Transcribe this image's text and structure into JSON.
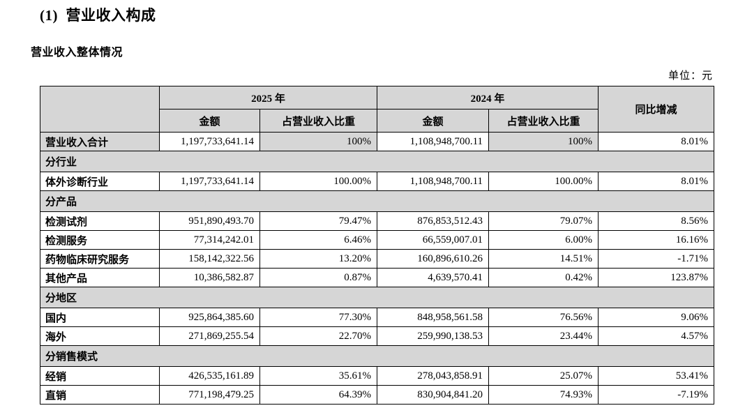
{
  "page": {
    "title": "(1)  营业收入构成",
    "subtitle": "营业收入整体情况",
    "unit_label": "单位：元"
  },
  "colors": {
    "shading": "#d6d6d6",
    "border": "#000000",
    "text": "#000000",
    "background": "#ffffff"
  },
  "table": {
    "header": {
      "year_2025": "2025 年",
      "year_2024": "2024 年",
      "yoy": "同比增减",
      "amount": "金额",
      "pct_of_revenue": "占营业收入比重"
    },
    "rows": [
      {
        "type": "data",
        "variant": "total",
        "label": "营业收入合计",
        "amount_2025": "1,197,733,641.14",
        "pct_2025": "100%",
        "amount_2024": "1,108,948,700.11",
        "pct_2024": "100%",
        "yoy": "8.01%"
      },
      {
        "type": "section",
        "label": "分行业"
      },
      {
        "type": "data",
        "label": "体外诊断行业",
        "amount_2025": "1,197,733,641.14",
        "pct_2025": "100.00%",
        "amount_2024": "1,108,948,700.11",
        "pct_2024": "100.00%",
        "yoy": "8.01%"
      },
      {
        "type": "section",
        "label": "分产品"
      },
      {
        "type": "data",
        "label": "检测试剂",
        "amount_2025": "951,890,493.70",
        "pct_2025": "79.47%",
        "amount_2024": "876,853,512.43",
        "pct_2024": "79.07%",
        "yoy": "8.56%"
      },
      {
        "type": "data",
        "label": "检测服务",
        "amount_2025": "77,314,242.01",
        "pct_2025": "6.46%",
        "amount_2024": "66,559,007.01",
        "pct_2024": "6.00%",
        "yoy": "16.16%"
      },
      {
        "type": "data",
        "label": "药物临床研究服务",
        "amount_2025": "158,142,322.56",
        "pct_2025": "13.20%",
        "amount_2024": "160,896,610.26",
        "pct_2024": "14.51%",
        "yoy": "-1.71%"
      },
      {
        "type": "data",
        "label": "其他产品",
        "amount_2025": "10,386,582.87",
        "pct_2025": "0.87%",
        "amount_2024": "4,639,570.41",
        "pct_2024": "0.42%",
        "yoy": "123.87%"
      },
      {
        "type": "section",
        "label": "分地区"
      },
      {
        "type": "data",
        "label": "国内",
        "amount_2025": "925,864,385.60",
        "pct_2025": "77.30%",
        "amount_2024": "848,958,561.58",
        "pct_2024": "76.56%",
        "yoy": "9.06%"
      },
      {
        "type": "data",
        "label": "海外",
        "amount_2025": "271,869,255.54",
        "pct_2025": "22.70%",
        "amount_2024": "259,990,138.53",
        "pct_2024": "23.44%",
        "yoy": "4.57%"
      },
      {
        "type": "section",
        "label": "分销售模式"
      },
      {
        "type": "data",
        "label": "经销",
        "amount_2025": "426,535,161.89",
        "pct_2025": "35.61%",
        "amount_2024": "278,043,858.91",
        "pct_2024": "25.07%",
        "yoy": "53.41%"
      },
      {
        "type": "data",
        "label": "直销",
        "amount_2025": "771,198,479.25",
        "pct_2025": "64.39%",
        "amount_2024": "830,904,841.20",
        "pct_2024": "74.93%",
        "yoy": "-7.19%"
      }
    ]
  }
}
